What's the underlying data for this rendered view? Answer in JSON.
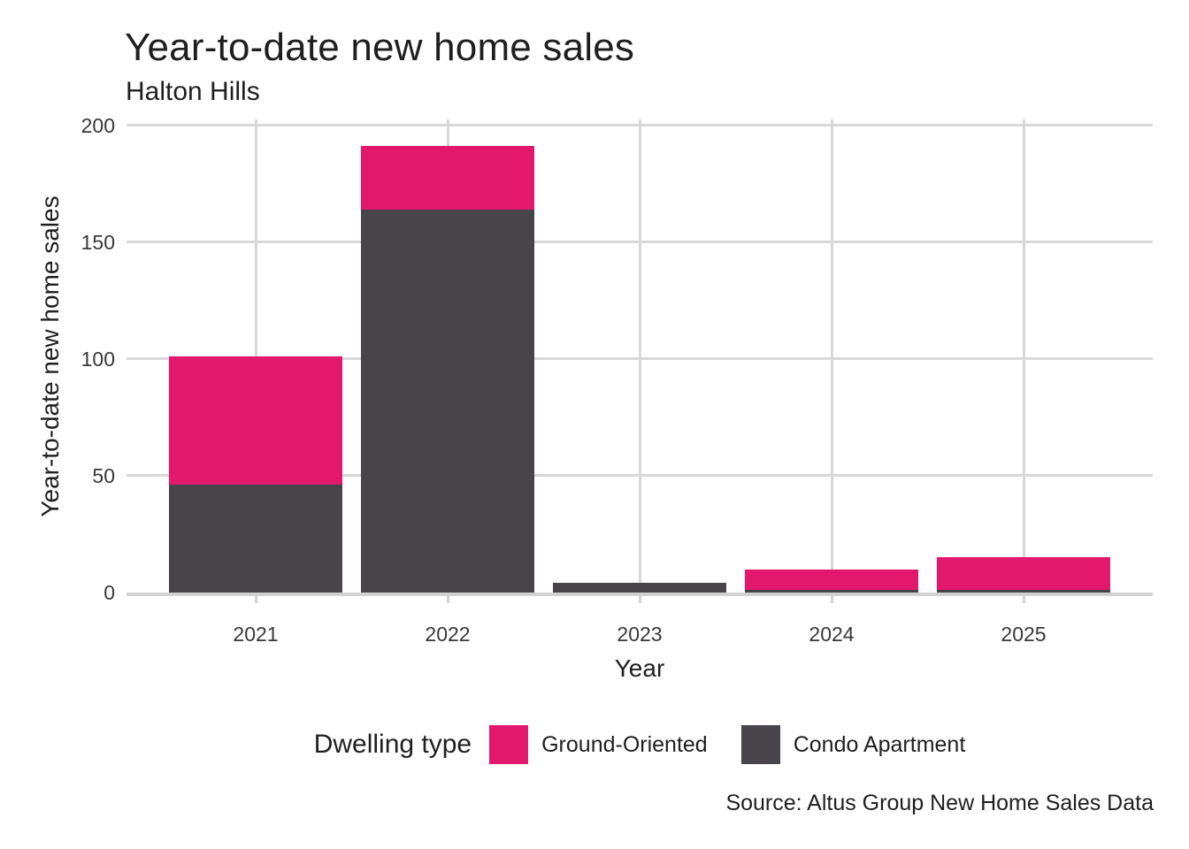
{
  "header": {
    "title": "Year-to-date new home sales",
    "subtitle": "Halton Hills"
  },
  "axes": {
    "x_title": "Year",
    "y_title": "Year-to-date new home sales",
    "y_tick_labels": [
      "0",
      "50",
      "100",
      "150",
      "200"
    ],
    "x_tick_labels": [
      "2021",
      "2022",
      "2023",
      "2024",
      "2025"
    ]
  },
  "legend": {
    "title": "Dwelling type",
    "items": [
      {
        "label": "Ground-Oriented",
        "color": "#e1186b"
      },
      {
        "label": "Condo Apartment",
        "color": "#48454a"
      }
    ]
  },
  "footer": {
    "source": "Source: Altus Group New Home Sales Data"
  },
  "colors": {
    "ground_oriented": "#e1186b",
    "condo_apartment": "#48454a",
    "gridline": "#d8d8d8",
    "axis_line": "#d2d1d1",
    "title_text": "#1f1f1f",
    "tick_text": "#383838",
    "background": "#ffffff"
  },
  "chart_data": {
    "type": "bar",
    "stacked": true,
    "title": "Year-to-date new home sales",
    "subtitle": "Halton Hills",
    "xlabel": "Year",
    "ylabel": "Year-to-date new home sales",
    "categories": [
      "2021",
      "2022",
      "2023",
      "2024",
      "2025"
    ],
    "series": [
      {
        "name": "Ground-Oriented",
        "color": "#e1186b",
        "values": [
          55,
          27,
          0,
          9,
          14
        ]
      },
      {
        "name": "Condo Apartment",
        "color": "#48454a",
        "values": [
          46,
          164,
          4,
          1,
          1
        ]
      }
    ],
    "totals": [
      101,
      191,
      4,
      10,
      15
    ],
    "stack_bottom_to_top": [
      "Condo Apartment",
      "Ground-Oriented"
    ],
    "ylim": [
      0,
      200
    ],
    "yticks": [
      0,
      50,
      100,
      150,
      200
    ],
    "grid": true,
    "legend_position": "bottom",
    "legend_title": "Dwelling type",
    "source": "Source: Altus Group New Home Sales Data"
  }
}
